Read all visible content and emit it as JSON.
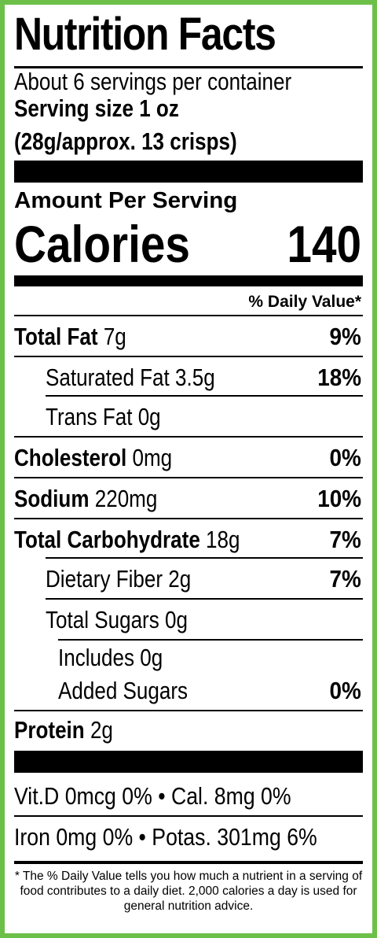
{
  "label": {
    "title": "Nutrition Facts",
    "servings_per_container": "About 6 servings per container",
    "serving_size_line1": "Serving size 1 oz",
    "serving_size_line2": "(28g/approx. 13 crisps)",
    "amount_per_serving": "Amount Per Serving",
    "calories_label": "Calories",
    "calories_value": "140",
    "daily_value_header": "% Daily Value*",
    "nutrients": [
      {
        "name": "Total Fat",
        "amount": "7g",
        "dv": "9%"
      },
      {
        "name": "Saturated Fat",
        "amount": "3.5g",
        "dv": "18%"
      },
      {
        "name": "Trans Fat",
        "amount": "0g",
        "dv": ""
      },
      {
        "name": "Cholesterol",
        "amount": "0mg",
        "dv": "0%"
      },
      {
        "name": "Sodium",
        "amount": "220mg",
        "dv": "10%"
      },
      {
        "name": "Total Carbohydrate",
        "amount": "18g",
        "dv": "7%"
      },
      {
        "name": "Dietary Fiber",
        "amount": "2g",
        "dv": "7%"
      },
      {
        "name": "Total Sugars",
        "amount": "0g",
        "dv": ""
      },
      {
        "name": "Includes 0g",
        "amount": "Added Sugars",
        "dv": "0%"
      },
      {
        "name": "Protein",
        "amount": "2g",
        "dv": ""
      }
    ],
    "vitamins_row1": "Vit.D 0mcg 0%  •  Cal. 8mg 0%",
    "vitamins_row2": "Iron 0mg 0% • Potas. 301mg 6%",
    "footnote": "* The % Daily Value tells you how much a nutrient in a serving of food contributes to a daily diet. 2,000 calories a day is used for general nutrition advice."
  },
  "colors": {
    "border": "#6cc04a",
    "text": "#000000",
    "background": "#ffffff"
  }
}
